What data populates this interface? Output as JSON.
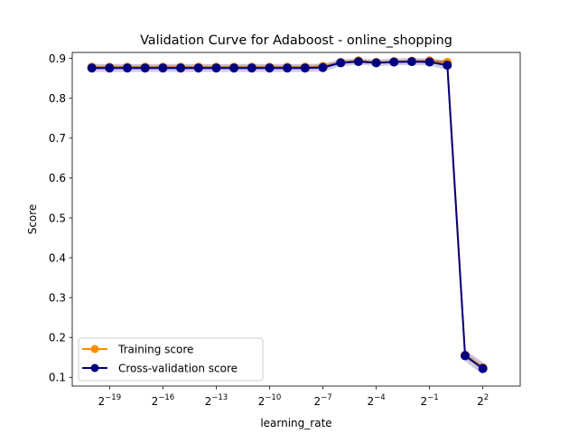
{
  "chart_data": {
    "type": "line",
    "title": "Validation Curve for Adaboost - online_shopping",
    "xlabel": "learning_rate",
    "ylabel": "Score",
    "xscale": "log2",
    "x_exponents": [
      -20,
      -19,
      -18,
      -17,
      -16,
      -15,
      -14,
      -13,
      -12,
      -11,
      -10,
      -9,
      -8,
      -7,
      -6,
      -5,
      -4,
      -3,
      -2,
      -1,
      0,
      1,
      2,
      3
    ],
    "xlim_exponents": [
      -21.1,
      4.1
    ],
    "x_tick_exponents": [
      -19,
      -16,
      -13,
      -10,
      -7,
      -4,
      -1,
      2
    ],
    "x_tick_base": "2",
    "ylim": [
      0.078,
      0.915
    ],
    "y_ticks": [
      "0.1",
      "0.2",
      "0.3",
      "0.4",
      "0.5",
      "0.6",
      "0.7",
      "0.8",
      "0.9"
    ],
    "legend_position": "lower-left",
    "grid": false,
    "series": [
      {
        "name": "Training score",
        "color": "#ff8c00",
        "band_color": "#ff8c00",
        "values": [
          0.878,
          0.878,
          0.878,
          0.878,
          0.878,
          0.878,
          0.878,
          0.878,
          0.878,
          0.878,
          0.878,
          0.878,
          0.878,
          0.88,
          0.89,
          0.894,
          0.89,
          0.892,
          0.893,
          0.894,
          0.89,
          0.156,
          0.124,
          null
        ],
        "std": [
          0.006,
          0.006,
          0.006,
          0.006,
          0.006,
          0.006,
          0.006,
          0.006,
          0.006,
          0.006,
          0.006,
          0.006,
          0.006,
          0.006,
          0.005,
          0.005,
          0.005,
          0.005,
          0.005,
          0.005,
          0.006,
          0.008,
          0.01,
          null
        ]
      },
      {
        "name": "Cross-validation score",
        "color": "#000080",
        "band_color": "#000080",
        "values": [
          0.876,
          0.876,
          0.876,
          0.876,
          0.876,
          0.876,
          0.876,
          0.876,
          0.876,
          0.876,
          0.876,
          0.876,
          0.876,
          0.877,
          0.889,
          0.892,
          0.889,
          0.891,
          0.892,
          0.891,
          0.883,
          0.154,
          0.122,
          null
        ],
        "std": [
          0.01,
          0.01,
          0.01,
          0.01,
          0.01,
          0.01,
          0.01,
          0.01,
          0.01,
          0.01,
          0.01,
          0.01,
          0.01,
          0.01,
          0.009,
          0.008,
          0.008,
          0.009,
          0.009,
          0.009,
          0.012,
          0.014,
          0.016,
          null
        ]
      }
    ]
  }
}
